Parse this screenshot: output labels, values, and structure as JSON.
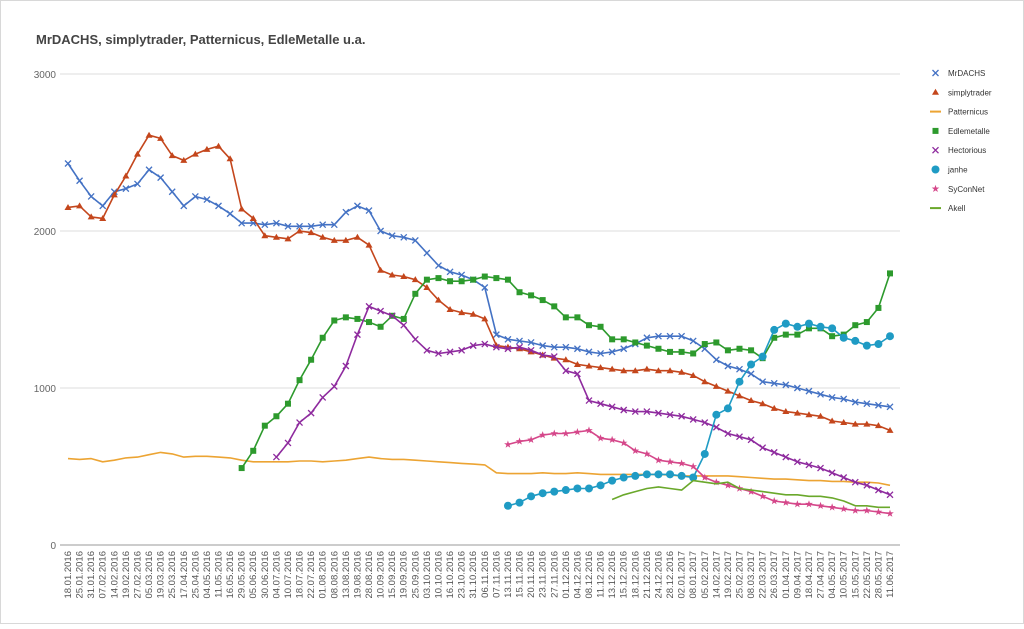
{
  "chart_data": {
    "type": "line",
    "title": "MrDACHS, simplytrader, Patternicus, EdleMetalle u.a.",
    "categories": [
      "18.01.2016",
      "25.01.2016",
      "31.01.2016",
      "07.02.2016",
      "14.02.2016",
      "19.02.2016",
      "27.02.2016",
      "05.03.2016",
      "19.03.2016",
      "25.03.2016",
      "17.04.2016",
      "25.04.2016",
      "04.05.2016",
      "11.05.2016",
      "16.05.2016",
      "29.05.2016",
      "05.06.2016",
      "30.06.2016",
      "04.07.2016",
      "10.07.2016",
      "18.07.2016",
      "22.07.2016",
      "01.08.2016",
      "08.08.2016",
      "13.08.2016",
      "19.08.2016",
      "28.08.2016",
      "10.09.2016",
      "15.09.2016",
      "19.09.2016",
      "25.09.2016",
      "03.10.2016",
      "10.10.2016",
      "16.10.2016",
      "23.10.2016",
      "31.10.2016",
      "06.11.2016",
      "07.11.2016",
      "13.11.2016",
      "15.11.2016",
      "20.11.2016",
      "23.11.2016",
      "27.11.2016",
      "01.12.2016",
      "04.12.2016",
      "08.12.2016",
      "11.12.2016",
      "13.12.2016",
      "15.12.2016",
      "18.12.2016",
      "21.12.2016",
      "24.12.2016",
      "28.12.2016",
      "02.01.2017",
      "08.01.2017",
      "05.02.2017",
      "14.02.2017",
      "19.02.2017",
      "25.02.2017",
      "08.03.2017",
      "22.03.2017",
      "26.03.2017",
      "01.04.2017",
      "09.04.2017",
      "18.04.2017",
      "27.04.2017",
      "04.05.2017",
      "10.05.2017",
      "15.05.2017",
      "22.05.2017",
      "28.05.2017",
      "11.06.2017"
    ],
    "series": [
      {
        "name": "MrDACHS",
        "color": "#4472c4",
        "marker": "x",
        "values": [
          2430,
          2320,
          2220,
          2160,
          2250,
          2270,
          2300,
          2390,
          2340,
          2250,
          2160,
          2220,
          2200,
          2160,
          2110,
          2050,
          2050,
          2040,
          2050,
          2030,
          2030,
          2030,
          2040,
          2040,
          2120,
          2160,
          2130,
          2000,
          1970,
          1960,
          1940,
          1860,
          1780,
          1740,
          1720,
          1690,
          1640,
          1340,
          1310,
          1300,
          1290,
          1270,
          1260,
          1260,
          1250,
          1230,
          1220,
          1230,
          1250,
          1280,
          1320,
          1330,
          1330,
          1330,
          1300,
          1250,
          1180,
          1140,
          1120,
          1090,
          1040,
          1030,
          1020,
          1000,
          980,
          960,
          940,
          930,
          910,
          900,
          890,
          880
        ]
      },
      {
        "name": "simplytrader",
        "color": "#c4461c",
        "marker": "triangle",
        "values": [
          2150,
          2160,
          2090,
          2080,
          2230,
          2350,
          2490,
          2610,
          2590,
          2480,
          2450,
          2490,
          2520,
          2540,
          2460,
          2140,
          2080,
          1970,
          1960,
          1950,
          2000,
          1990,
          1960,
          1940,
          1940,
          1960,
          1910,
          1750,
          1720,
          1710,
          1690,
          1640,
          1560,
          1500,
          1480,
          1470,
          1440,
          1270,
          1260,
          1250,
          1230,
          1210,
          1190,
          1180,
          1150,
          1140,
          1130,
          1120,
          1110,
          1110,
          1120,
          1110,
          1110,
          1100,
          1080,
          1040,
          1010,
          980,
          950,
          920,
          900,
          870,
          850,
          840,
          830,
          820,
          790,
          780,
          770,
          770,
          760,
          730
        ]
      },
      {
        "name": "Patternicus",
        "color": "#eca433",
        "marker": "none",
        "values": [
          550,
          545,
          550,
          530,
          540,
          555,
          560,
          575,
          590,
          580,
          560,
          565,
          565,
          560,
          555,
          540,
          530,
          530,
          530,
          530,
          535,
          535,
          530,
          535,
          540,
          550,
          560,
          550,
          545,
          545,
          540,
          535,
          530,
          525,
          520,
          515,
          510,
          460,
          455,
          455,
          455,
          460,
          455,
          455,
          460,
          455,
          450,
          450,
          450,
          450,
          450,
          450,
          445,
          440,
          440,
          440,
          440,
          440,
          435,
          430,
          425,
          420,
          420,
          415,
          410,
          410,
          405,
          405,
          400,
          400,
          395,
          380
        ]
      },
      {
        "name": "Edlemetalle",
        "color": "#2d9a2d",
        "marker": "square",
        "values": [
          null,
          null,
          null,
          null,
          null,
          null,
          null,
          null,
          null,
          null,
          null,
          null,
          null,
          null,
          null,
          490,
          600,
          760,
          820,
          900,
          1050,
          1180,
          1320,
          1430,
          1450,
          1440,
          1420,
          1390,
          1460,
          1440,
          1600,
          1690,
          1700,
          1680,
          1680,
          1690,
          1710,
          1700,
          1690,
          1610,
          1590,
          1560,
          1520,
          1450,
          1450,
          1400,
          1390,
          1310,
          1310,
          1290,
          1270,
          1250,
          1230,
          1230,
          1220,
          1280,
          1290,
          1240,
          1250,
          1240,
          1190,
          1320,
          1340,
          1340,
          1380,
          1380,
          1330,
          1340,
          1400,
          1420,
          1510,
          1730
        ]
      },
      {
        "name": "Hectorious",
        "color": "#8e2a9e",
        "marker": "x",
        "values": [
          null,
          null,
          null,
          null,
          null,
          null,
          null,
          null,
          null,
          null,
          null,
          null,
          null,
          null,
          null,
          null,
          null,
          null,
          560,
          650,
          780,
          840,
          940,
          1010,
          1140,
          1340,
          1520,
          1490,
          1460,
          1400,
          1310,
          1240,
          1220,
          1230,
          1240,
          1270,
          1280,
          1260,
          1250,
          1260,
          1240,
          1210,
          1200,
          1110,
          1090,
          920,
          900,
          880,
          860,
          850,
          850,
          840,
          830,
          820,
          800,
          780,
          750,
          710,
          690,
          670,
          620,
          590,
          560,
          530,
          510,
          490,
          460,
          430,
          400,
          380,
          350,
          320
        ]
      },
      {
        "name": "janhe",
        "color": "#1f9bc4",
        "marker": "circle",
        "values": [
          null,
          null,
          null,
          null,
          null,
          null,
          null,
          null,
          null,
          null,
          null,
          null,
          null,
          null,
          null,
          null,
          null,
          null,
          null,
          null,
          null,
          null,
          null,
          null,
          null,
          null,
          null,
          null,
          null,
          null,
          null,
          null,
          null,
          null,
          null,
          null,
          null,
          null,
          250,
          270,
          310,
          330,
          340,
          350,
          360,
          360,
          380,
          410,
          430,
          440,
          450,
          450,
          450,
          440,
          430,
          580,
          830,
          870,
          1040,
          1150,
          1200,
          1370,
          1410,
          1390,
          1410,
          1390,
          1380,
          1320,
          1300,
          1270,
          1280,
          1330
        ]
      },
      {
        "name": "SyConNet",
        "color": "#d5478a",
        "marker": "star",
        "values": [
          null,
          null,
          null,
          null,
          null,
          null,
          null,
          null,
          null,
          null,
          null,
          null,
          null,
          null,
          null,
          null,
          null,
          null,
          null,
          null,
          null,
          null,
          null,
          null,
          null,
          null,
          null,
          null,
          null,
          null,
          null,
          null,
          null,
          null,
          null,
          null,
          null,
          null,
          640,
          660,
          670,
          700,
          710,
          710,
          720,
          730,
          680,
          670,
          650,
          600,
          580,
          540,
          530,
          520,
          500,
          430,
          400,
          380,
          360,
          340,
          310,
          280,
          270,
          260,
          260,
          250,
          240,
          230,
          220,
          220,
          210,
          200
        ]
      },
      {
        "name": "Akell",
        "color": "#6aa82b",
        "marker": "none",
        "values": [
          null,
          null,
          null,
          null,
          null,
          null,
          null,
          null,
          null,
          null,
          null,
          null,
          null,
          null,
          null,
          null,
          null,
          null,
          null,
          null,
          null,
          null,
          null,
          null,
          null,
          null,
          null,
          null,
          null,
          null,
          null,
          null,
          null,
          null,
          null,
          null,
          null,
          null,
          null,
          null,
          null,
          null,
          null,
          null,
          null,
          null,
          null,
          290,
          320,
          340,
          360,
          370,
          360,
          350,
          410,
          400,
          390,
          400,
          360,
          350,
          340,
          330,
          320,
          320,
          310,
          310,
          300,
          280,
          250,
          250,
          240,
          240
        ]
      }
    ],
    "ylim": [
      0,
      3000
    ],
    "yticks": [
      0,
      1000,
      2000,
      3000
    ],
    "grid": true,
    "legend": "right"
  }
}
